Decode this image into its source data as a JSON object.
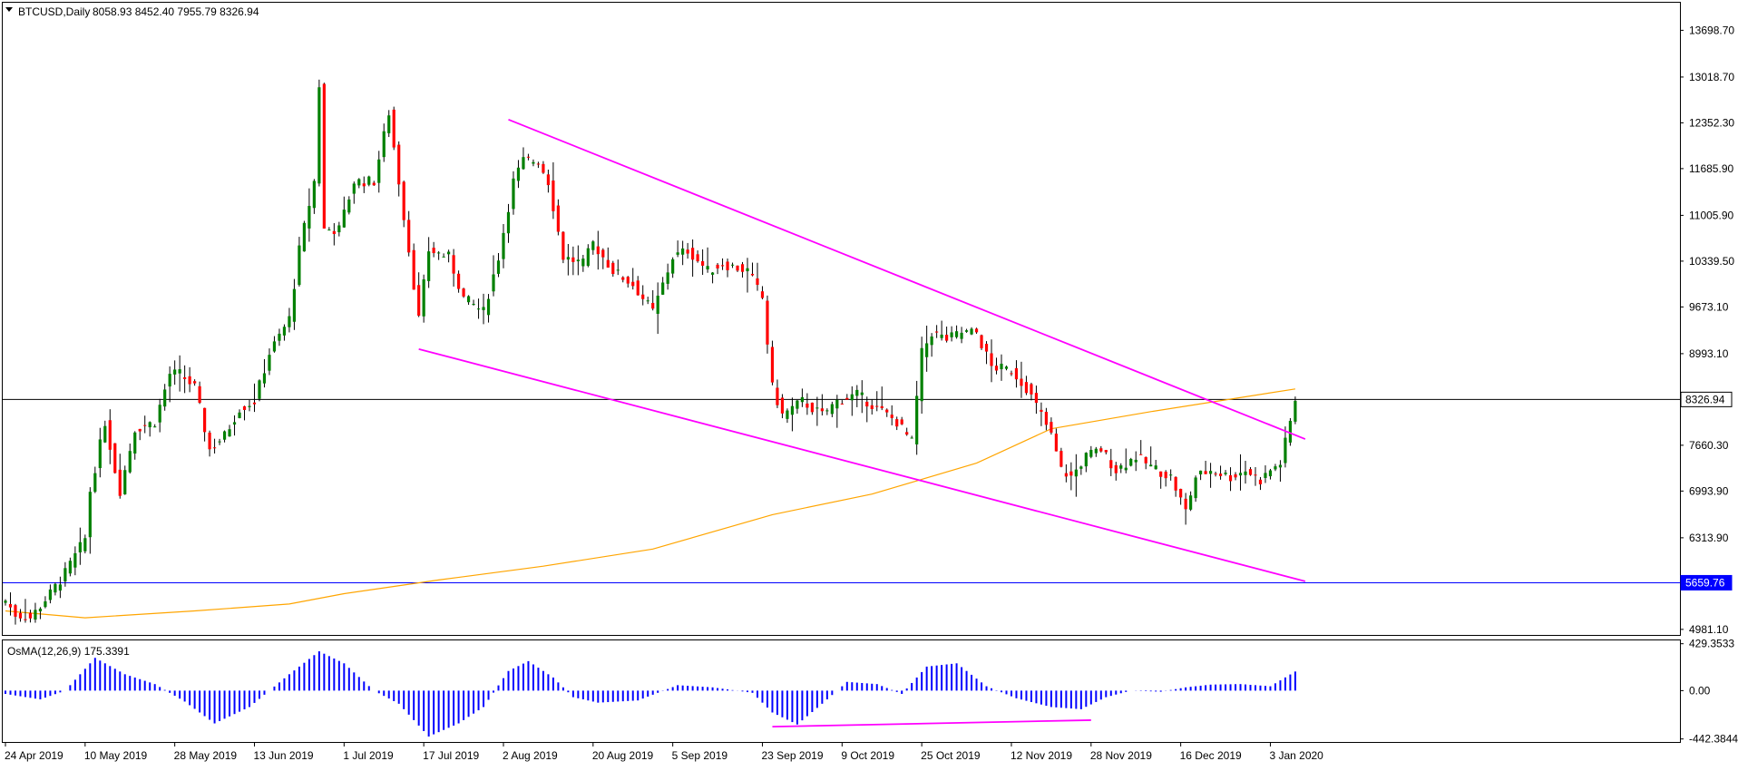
{
  "header": {
    "symbol_label": "BTCUSD,Daily",
    "ohlc": "8058.93 8452.40 7955.79 8326.94"
  },
  "indicator": {
    "label": "OsMA(12,26,9) 175.3391",
    "scale_labels": [
      "429.3533",
      "0.00",
      "-442.3844"
    ]
  },
  "price_tags": {
    "current": "8326.94",
    "support": "5659.76"
  },
  "colors": {
    "bull": "#008000",
    "bear": "#ff0000",
    "wick": "#000000",
    "trendline": "#ff00ff",
    "ma": "#ffa500",
    "support_line": "#0000ff",
    "histogram": "#0000ff"
  },
  "chart_data": {
    "type": "candlestick",
    "title": "BTCUSD,Daily",
    "y_ticks": [
      "13698.70",
      "13018.70",
      "12352.30",
      "11685.90",
      "11005.90",
      "10339.50",
      "9673.10",
      "8993.10",
      "8326.94",
      "7660.30",
      "6993.90",
      "6313.90",
      "5659.76",
      "4981.10"
    ],
    "x_ticks": [
      "24 Apr 2019",
      "10 May 2019",
      "28 May 2019",
      "13 Jun 2019",
      "1 Jul 2019",
      "17 Jul 2019",
      "2 Aug 2019",
      "20 Aug 2019",
      "5 Sep 2019",
      "23 Sep 2019",
      "9 Oct 2019",
      "25 Oct 2019",
      "12 Nov 2019",
      "28 Nov 2019",
      "16 Dec 2019",
      "3 Jan 2020"
    ],
    "ylim": [
      4900,
      14100
    ],
    "current_price": 8326.94,
    "support_level": 5659.76,
    "anchors": [
      [
        "2019-04-24",
        5400
      ],
      [
        "2019-04-26",
        5200
      ],
      [
        "2019-04-29",
        5150
      ],
      [
        "2019-05-03",
        5500
      ],
      [
        "2019-05-06",
        5800
      ],
      [
        "2019-05-10",
        6300
      ],
      [
        "2019-05-11",
        7000
      ],
      [
        "2019-05-14",
        8000
      ],
      [
        "2019-05-16",
        7300
      ],
      [
        "2019-05-17",
        7000
      ],
      [
        "2019-05-20",
        7900
      ],
      [
        "2019-05-24",
        8000
      ],
      [
        "2019-05-27",
        8700
      ],
      [
        "2019-05-29",
        8700
      ],
      [
        "2019-06-01",
        8500
      ],
      [
        "2019-06-04",
        7600
      ],
      [
        "2019-06-07",
        7800
      ],
      [
        "2019-06-10",
        8200
      ],
      [
        "2019-06-13",
        8300
      ],
      [
        "2019-06-16",
        9000
      ],
      [
        "2019-06-20",
        9500
      ],
      [
        "2019-06-22",
        10500
      ],
      [
        "2019-06-25",
        11500
      ],
      [
        "2019-06-26",
        12900
      ],
      [
        "2019-06-27",
        10800
      ],
      [
        "2019-06-30",
        10800
      ],
      [
        "2019-07-03",
        11500
      ],
      [
        "2019-07-07",
        11500
      ],
      [
        "2019-07-10",
        12500
      ],
      [
        "2019-07-12",
        11500
      ],
      [
        "2019-07-14",
        10500
      ],
      [
        "2019-07-16",
        9500
      ],
      [
        "2019-07-18",
        10500
      ],
      [
        "2019-07-22",
        10400
      ],
      [
        "2019-07-25",
        9800
      ],
      [
        "2019-07-29",
        9600
      ],
      [
        "2019-08-01",
        10400
      ],
      [
        "2019-08-04",
        11500
      ],
      [
        "2019-08-06",
        11800
      ],
      [
        "2019-08-09",
        11800
      ],
      [
        "2019-08-11",
        11500
      ],
      [
        "2019-08-14",
        10400
      ],
      [
        "2019-08-18",
        10300
      ],
      [
        "2019-08-20",
        10600
      ],
      [
        "2019-08-24",
        10200
      ],
      [
        "2019-08-28",
        10000
      ],
      [
        "2019-09-01",
        9600
      ],
      [
        "2019-09-05",
        10400
      ],
      [
        "2019-09-08",
        10500
      ],
      [
        "2019-09-12",
        10200
      ],
      [
        "2019-09-15",
        10300
      ],
      [
        "2019-09-20",
        10200
      ],
      [
        "2019-09-23",
        9800
      ],
      [
        "2019-09-25",
        8500
      ],
      [
        "2019-09-27",
        8100
      ],
      [
        "2019-10-01",
        8300
      ],
      [
        "2019-10-05",
        8100
      ],
      [
        "2019-10-08",
        8300
      ],
      [
        "2019-10-12",
        8400
      ],
      [
        "2019-10-16",
        8200
      ],
      [
        "2019-10-20",
        8000
      ],
      [
        "2019-10-23",
        7700
      ],
      [
        "2019-10-25",
        9000
      ],
      [
        "2019-10-27",
        9300
      ],
      [
        "2019-10-30",
        9200
      ],
      [
        "2019-11-02",
        9300
      ],
      [
        "2019-11-05",
        9300
      ],
      [
        "2019-11-08",
        8800
      ],
      [
        "2019-11-12",
        8750
      ],
      [
        "2019-11-15",
        8500
      ],
      [
        "2019-11-18",
        8100
      ],
      [
        "2019-11-20",
        7800
      ],
      [
        "2019-11-22",
        7300
      ],
      [
        "2019-11-24",
        7200
      ],
      [
        "2019-11-27",
        7500
      ],
      [
        "2019-11-30",
        7600
      ],
      [
        "2019-12-03",
        7300
      ],
      [
        "2019-12-07",
        7500
      ],
      [
        "2019-12-10",
        7350
      ],
      [
        "2019-12-14",
        7200
      ],
      [
        "2019-12-17",
        6700
      ],
      [
        "2019-12-19",
        7200
      ],
      [
        "2019-12-22",
        7300
      ],
      [
        "2019-12-26",
        7200
      ],
      [
        "2019-12-29",
        7300
      ],
      [
        "2020-01-01",
        7150
      ],
      [
        "2020-01-03",
        7300
      ],
      [
        "2020-01-05",
        7400
      ],
      [
        "2020-01-07",
        8000
      ],
      [
        "2020-01-08",
        8326.94
      ]
    ],
    "ma_points": [
      [
        "2019-04-24",
        5250
      ],
      [
        "2019-05-10",
        5150
      ],
      [
        "2019-06-01",
        5250
      ],
      [
        "2019-06-20",
        5350
      ],
      [
        "2019-07-01",
        5500
      ],
      [
        "2019-07-20",
        5700
      ],
      [
        "2019-08-10",
        5900
      ],
      [
        "2019-09-01",
        6150
      ],
      [
        "2019-09-25",
        6650
      ],
      [
        "2019-10-15",
        6950
      ],
      [
        "2019-11-05",
        7400
      ],
      [
        "2019-11-20",
        7900
      ],
      [
        "2019-12-10",
        8150
      ],
      [
        "2020-01-08",
        8480
      ]
    ],
    "trendlines": [
      {
        "from": [
          "2019-08-03",
          12400
        ],
        "to": [
          "2020-01-10",
          7750
        ]
      },
      {
        "from": [
          "2019-07-16",
          9060
        ],
        "to": [
          "2020-01-10",
          5680
        ]
      }
    ],
    "osma_anchors": [
      [
        "2019-04-24",
        -30
      ],
      [
        "2019-05-01",
        -80
      ],
      [
        "2019-05-06",
        0
      ],
      [
        "2019-05-12",
        300
      ],
      [
        "2019-05-18",
        150
      ],
      [
        "2019-05-24",
        60
      ],
      [
        "2019-05-30",
        -100
      ],
      [
        "2019-06-05",
        -300
      ],
      [
        "2019-06-12",
        -150
      ],
      [
        "2019-06-20",
        150
      ],
      [
        "2019-06-26",
        360
      ],
      [
        "2019-07-01",
        250
      ],
      [
        "2019-07-07",
        0
      ],
      [
        "2019-07-12",
        -120
      ],
      [
        "2019-07-18",
        -420
      ],
      [
        "2019-07-24",
        -300
      ],
      [
        "2019-07-29",
        -150
      ],
      [
        "2019-08-03",
        180
      ],
      [
        "2019-08-07",
        270
      ],
      [
        "2019-08-12",
        120
      ],
      [
        "2019-08-16",
        -60
      ],
      [
        "2019-08-21",
        -110
      ],
      [
        "2019-08-29",
        -90
      ],
      [
        "2019-09-06",
        50
      ],
      [
        "2019-09-13",
        30
      ],
      [
        "2019-09-21",
        -20
      ],
      [
        "2019-09-25",
        -200
      ],
      [
        "2019-09-30",
        -310
      ],
      [
        "2019-10-05",
        -120
      ],
      [
        "2019-10-10",
        80
      ],
      [
        "2019-10-16",
        60
      ],
      [
        "2019-10-21",
        -30
      ],
      [
        "2019-10-26",
        220
      ],
      [
        "2019-11-01",
        250
      ],
      [
        "2019-11-07",
        40
      ],
      [
        "2019-11-13",
        -70
      ],
      [
        "2019-11-20",
        -150
      ],
      [
        "2019-11-26",
        -170
      ],
      [
        "2019-12-01",
        -60
      ],
      [
        "2019-12-06",
        0
      ],
      [
        "2019-12-12",
        -10
      ],
      [
        "2019-12-17",
        30
      ],
      [
        "2019-12-22",
        55
      ],
      [
        "2019-12-28",
        60
      ],
      [
        "2020-01-03",
        40
      ],
      [
        "2020-01-08",
        175
      ]
    ],
    "osma_ylim": [
      -470,
      460
    ],
    "divergence_line": {
      "from": [
        "2019-09-25",
        -330
      ],
      "to": [
        "2019-11-28",
        -270
      ]
    }
  }
}
